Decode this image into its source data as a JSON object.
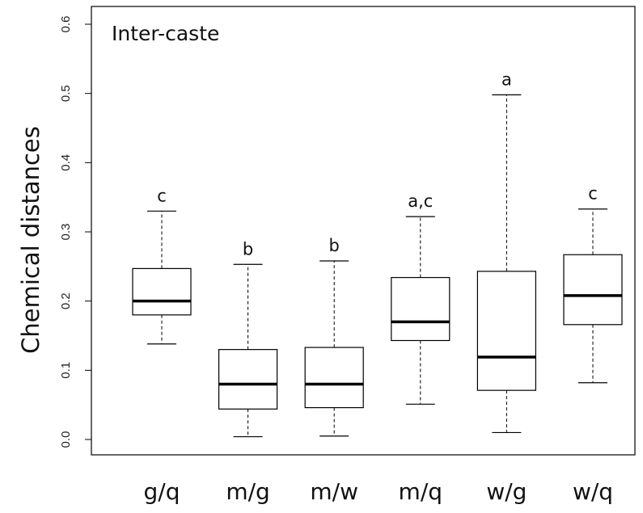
{
  "chart_data": {
    "type": "box",
    "title": "Inter-caste",
    "ylabel": "Chemical distances",
    "xlabel": "",
    "ylim": [
      0.0,
      0.6
    ],
    "yticks": [
      0.0,
      0.1,
      0.2,
      0.3,
      0.4,
      0.5,
      0.6
    ],
    "ytick_labels": [
      "0.0",
      "0.1",
      "0.2",
      "0.3",
      "0.4",
      "0.5",
      "0.6"
    ],
    "categories": [
      "g/q",
      "m/g",
      "m/w",
      "m/q",
      "w/g",
      "w/q"
    ],
    "boxes": [
      {
        "category": "g/q",
        "min": 0.138,
        "q1": 0.18,
        "median": 0.2,
        "q3": 0.247,
        "max": 0.33,
        "letter": "c"
      },
      {
        "category": "m/g",
        "min": 0.004,
        "q1": 0.044,
        "median": 0.08,
        "q3": 0.13,
        "max": 0.253,
        "letter": "b"
      },
      {
        "category": "m/w",
        "min": 0.005,
        "q1": 0.046,
        "median": 0.08,
        "q3": 0.133,
        "max": 0.258,
        "letter": "b"
      },
      {
        "category": "m/q",
        "min": 0.051,
        "q1": 0.143,
        "median": 0.17,
        "q3": 0.234,
        "max": 0.322,
        "letter": "a,c"
      },
      {
        "category": "w/g",
        "min": 0.01,
        "q1": 0.071,
        "median": 0.119,
        "q3": 0.243,
        "max": 0.498,
        "letter": "a"
      },
      {
        "category": "w/q",
        "min": 0.082,
        "q1": 0.166,
        "median": 0.208,
        "q3": 0.267,
        "max": 0.333,
        "letter": "c"
      }
    ],
    "grid": false,
    "colors": {
      "box_stroke": "#000000",
      "box_fill": "#ffffff",
      "median": "#000000",
      "whisker": "#000000"
    }
  }
}
